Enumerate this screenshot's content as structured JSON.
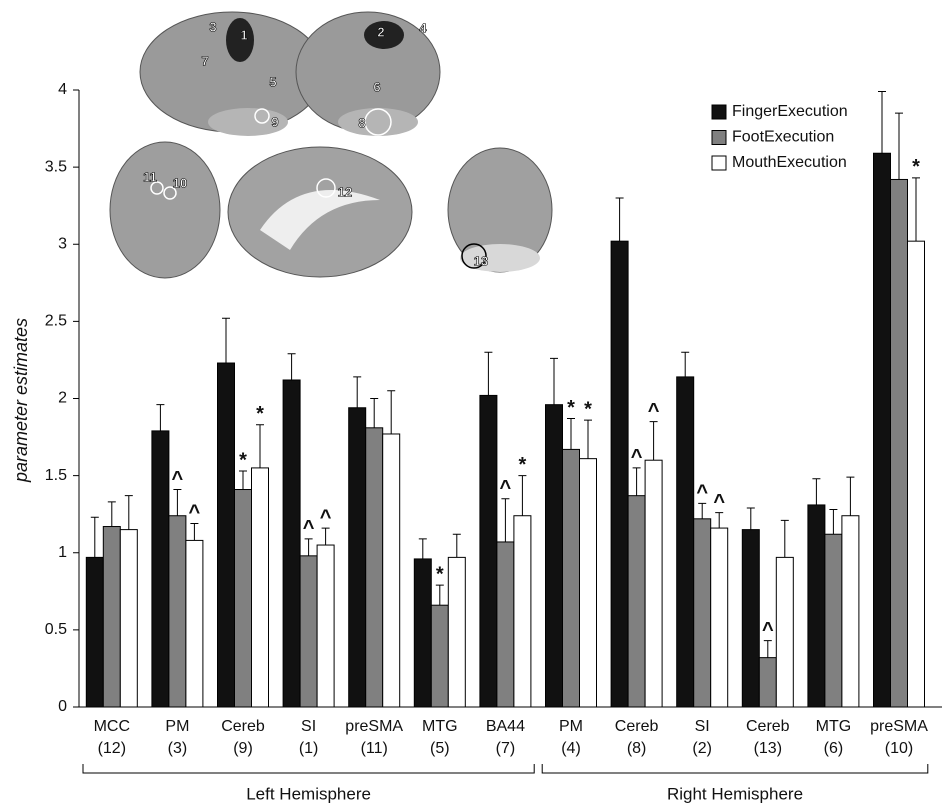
{
  "chart_data": {
    "type": "bar",
    "y_label": "parameter estimates",
    "categories": [
      "MCC",
      "PM",
      "Cereb",
      "SI",
      "preSMA",
      "MTG",
      "BA44",
      "PM",
      "Cereb",
      "SI",
      "Cereb",
      "MTG",
      "preSMA"
    ],
    "region_numbers": [
      "(12)",
      "(3)",
      "(9)",
      "(1)",
      "(11)",
      "(5)",
      "(7)",
      "(4)",
      "(8)",
      "(2)",
      "(13)",
      "(6)",
      "(10)"
    ],
    "groups": [
      "Left Hemisphere",
      "Right Hemisphere"
    ],
    "series": [
      {
        "name": "FingerExecution",
        "color": "#111111",
        "values": [
          0.97,
          1.79,
          2.23,
          2.12,
          1.94,
          0.96,
          2.02,
          1.96,
          3.02,
          2.14,
          1.15,
          1.31,
          3.59
        ],
        "errors": [
          0.26,
          0.17,
          0.29,
          0.17,
          0.2,
          0.13,
          0.28,
          0.3,
          0.28,
          0.16,
          0.14,
          0.17,
          0.4
        ],
        "markers": [
          null,
          null,
          null,
          null,
          null,
          null,
          null,
          null,
          null,
          null,
          null,
          null,
          null
        ]
      },
      {
        "name": "FootExecution",
        "color": "#808080",
        "values": [
          1.17,
          1.24,
          1.41,
          0.98,
          1.81,
          0.66,
          1.07,
          1.67,
          1.37,
          1.22,
          0.32,
          1.12,
          3.42
        ],
        "errors": [
          0.16,
          0.17,
          0.12,
          0.11,
          0.19,
          0.13,
          0.28,
          0.2,
          0.18,
          0.1,
          0.11,
          0.16,
          0.43
        ],
        "markers": [
          null,
          "^",
          "*",
          "^",
          null,
          "*",
          "^",
          "*",
          "^",
          "^",
          "^",
          null,
          null
        ]
      },
      {
        "name": "MouthExecution",
        "color": "#ffffff",
        "values": [
          1.15,
          1.08,
          1.55,
          1.05,
          1.77,
          0.97,
          1.24,
          1.61,
          1.6,
          1.16,
          0.97,
          1.24,
          3.02
        ],
        "errors": [
          0.22,
          0.11,
          0.28,
          0.11,
          0.28,
          0.15,
          0.26,
          0.25,
          0.25,
          0.1,
          0.24,
          0.25,
          0.41
        ],
        "markers": [
          null,
          "^",
          "*",
          "^",
          null,
          null,
          "*",
          "*",
          "^",
          "^",
          null,
          null,
          "*"
        ]
      }
    ],
    "ylim": [
      0,
      4
    ],
    "yticks": [
      0,
      0.5,
      1,
      1.5,
      2,
      2.5,
      3,
      3.5,
      4
    ],
    "brain_labels": [
      "3",
      "1",
      "7",
      "5",
      "9",
      "2",
      "4",
      "6",
      "8",
      "11",
      "10",
      "12",
      "13"
    ]
  }
}
